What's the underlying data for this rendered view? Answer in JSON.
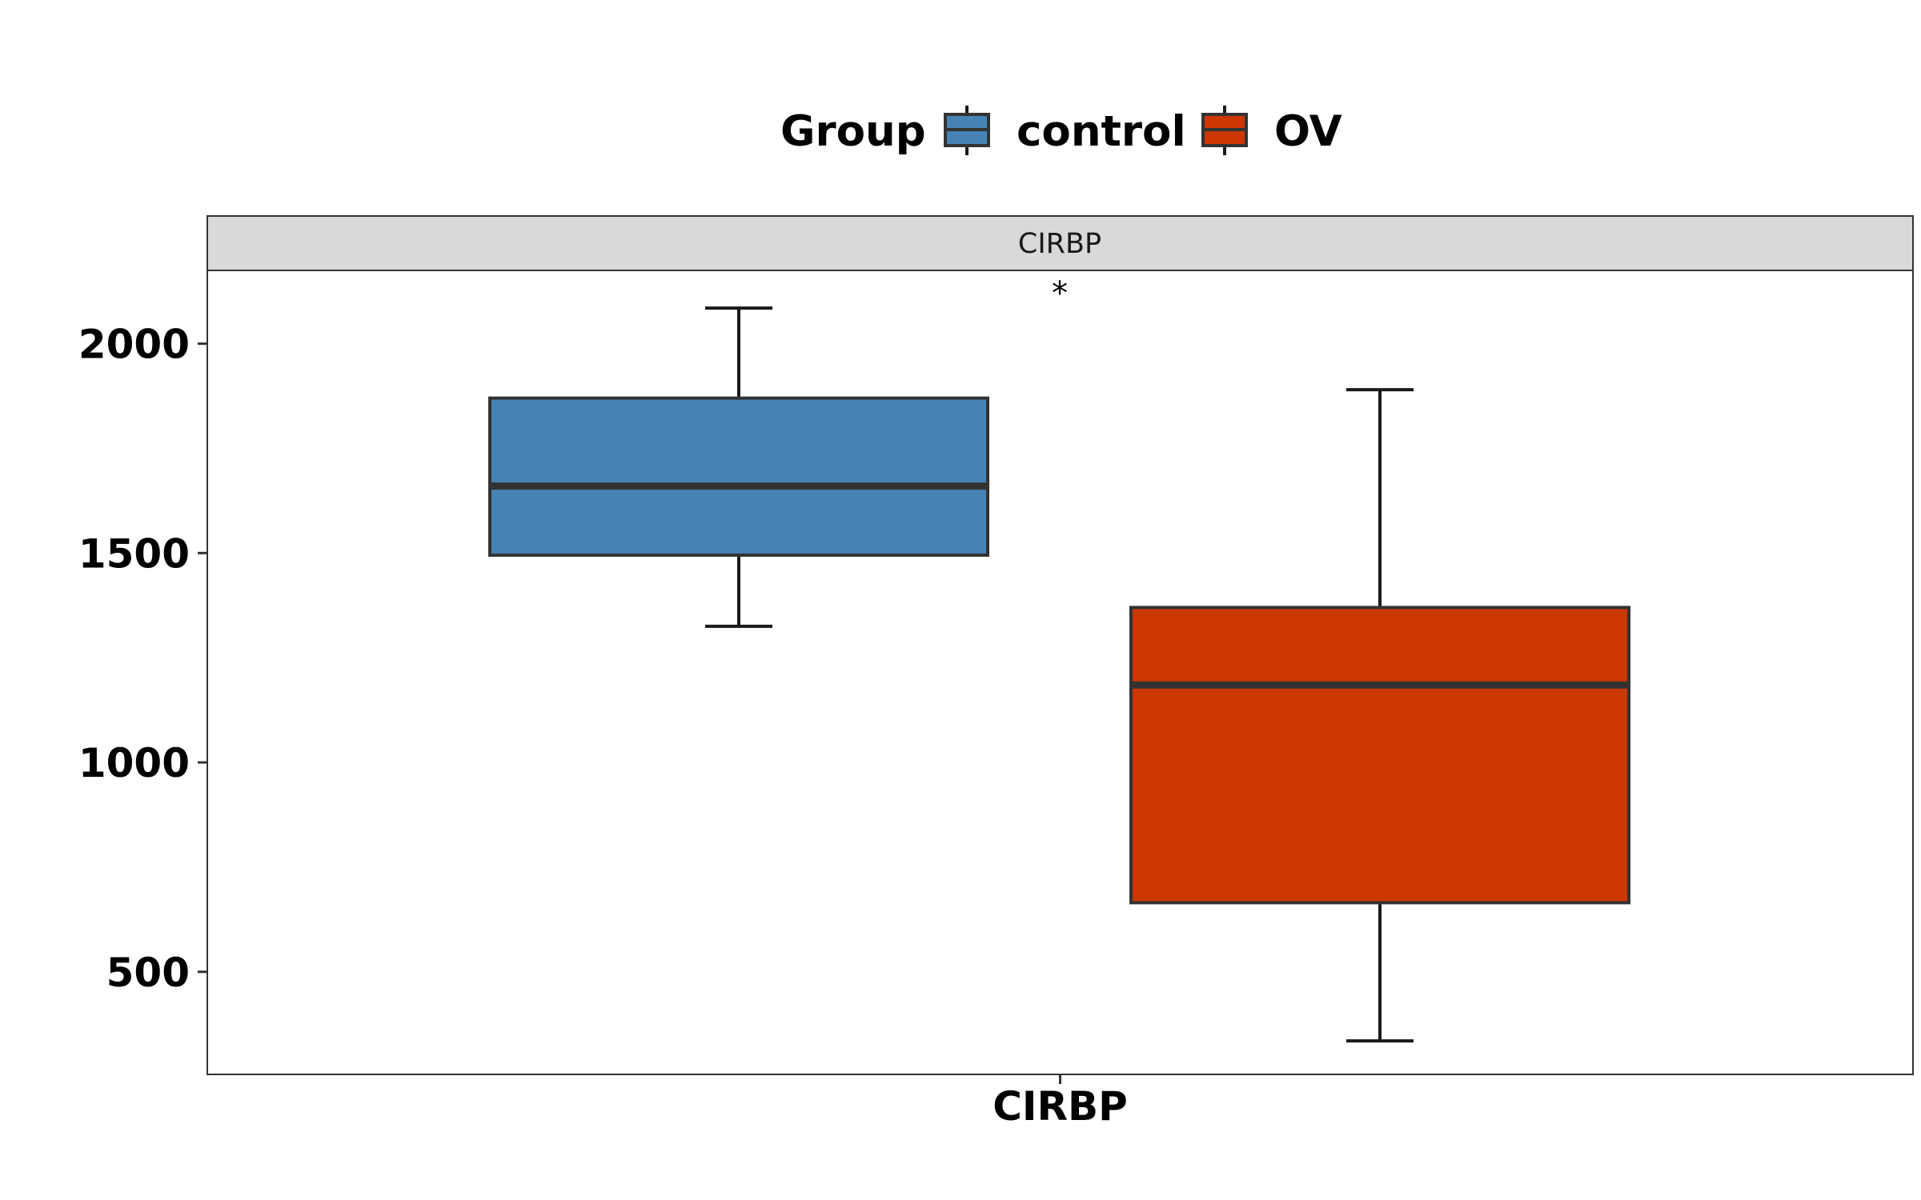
{
  "chart_data": {
    "type": "boxplot",
    "facet": "CIRBP",
    "categories": [
      "CIRBP"
    ],
    "legend": {
      "title": "Group",
      "position": "top",
      "entries": [
        {
          "label": "control",
          "color": "#4682B4"
        },
        {
          "label": "OV",
          "color": "#CD3700"
        }
      ]
    },
    "series": [
      {
        "name": "control",
        "color": "#4682B4",
        "whisker_low": 1325,
        "q1": 1495,
        "median": 1660,
        "q3": 1870,
        "whisker_high": 2085
      },
      {
        "name": "OV",
        "color": "#CD3700",
        "whisker_low": 335,
        "q1": 665,
        "median": 1185,
        "q3": 1370,
        "whisker_high": 1890
      }
    ],
    "significance": "*",
    "y_ticks": [
      500,
      1000,
      1500,
      2000
    ],
    "ylim": [
      255,
      2175
    ],
    "xlabel": "",
    "ylabel": "",
    "grid": false
  },
  "colors": {
    "box_outline": "#333333",
    "panel_border": "#333333",
    "strip_fill": "#D9D9D9"
  }
}
